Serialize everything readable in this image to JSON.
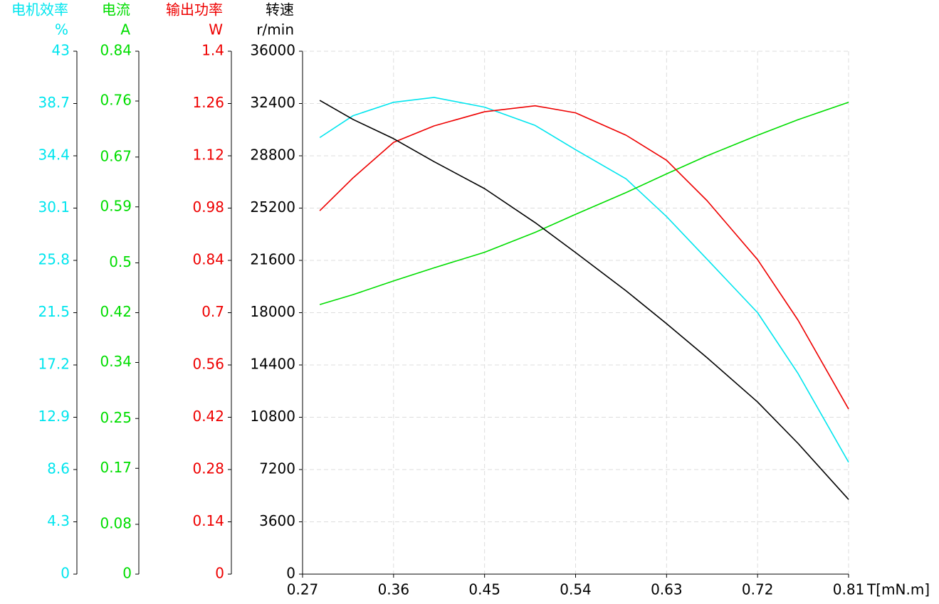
{
  "chart_data": {
    "type": "line",
    "x_label": "T[mN.m]",
    "xlim": [
      0.27,
      0.81
    ],
    "xticks": [
      0.27,
      0.36,
      0.45,
      0.54,
      0.63,
      0.72,
      0.81
    ],
    "grid": true,
    "axes": [
      {
        "title": "电机效率",
        "unit": "%",
        "color": "#00e5ee",
        "lim": [
          0,
          43
        ],
        "ticks": [
          0,
          4.3,
          8.6,
          12.9,
          17.2,
          21.5,
          25.8,
          30.1,
          34.4,
          38.7,
          43
        ]
      },
      {
        "title": "电流",
        "unit": "A",
        "color": "#00dd00",
        "lim": [
          0,
          0.84
        ],
        "ticks": [
          0,
          0.08,
          0.17,
          0.25,
          0.34,
          0.42,
          0.5,
          0.59,
          0.67,
          0.76,
          0.84
        ]
      },
      {
        "title": "输出功率",
        "unit": "W",
        "color": "#ee0000",
        "lim": [
          0,
          1.4
        ],
        "ticks": [
          0,
          0.14,
          0.28,
          0.42,
          0.56,
          0.7,
          0.84,
          0.98,
          1.12,
          1.26,
          1.4
        ]
      },
      {
        "title": "转速",
        "unit": "r/min",
        "color": "#000000",
        "lim": [
          0,
          36000
        ],
        "ticks": [
          0,
          3600,
          7200,
          10800,
          14400,
          18000,
          21600,
          25200,
          28800,
          32400,
          36000
        ]
      }
    ],
    "x": [
      0.287,
      0.32,
      0.36,
      0.4,
      0.45,
      0.5,
      0.54,
      0.59,
      0.63,
      0.67,
      0.72,
      0.76,
      0.81
    ],
    "series": [
      {
        "axis": 0,
        "color": "#00e5ee",
        "values": [
          35.9,
          37.7,
          38.8,
          39.2,
          38.4,
          36.9,
          34.9,
          32.5,
          29.4,
          25.9,
          21.5,
          16.5,
          9.2
        ]
      },
      {
        "axis": 1,
        "color": "#00dd00",
        "values": [
          0.433,
          0.449,
          0.471,
          0.492,
          0.517,
          0.549,
          0.578,
          0.613,
          0.643,
          0.672,
          0.705,
          0.73,
          0.758
        ]
      },
      {
        "axis": 2,
        "color": "#ee0000",
        "values": [
          0.973,
          1.061,
          1.156,
          1.2,
          1.238,
          1.254,
          1.235,
          1.175,
          1.108,
          1.0,
          0.842,
          0.68,
          0.442
        ]
      },
      {
        "axis": 3,
        "color": "#000000",
        "values": [
          32620,
          31300,
          29980,
          28400,
          26540,
          24200,
          22140,
          19500,
          17240,
          14900,
          11850,
          9000,
          5140
        ]
      }
    ]
  }
}
